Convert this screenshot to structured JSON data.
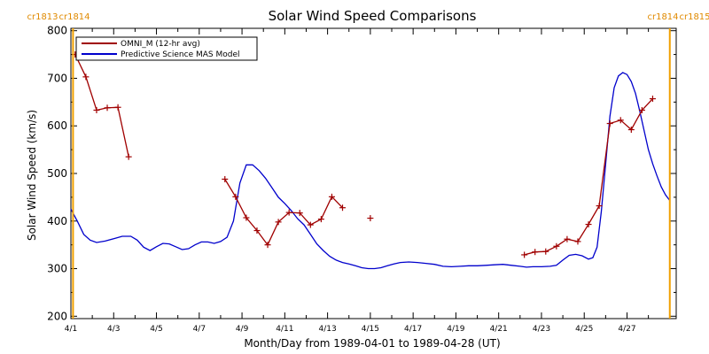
{
  "chart_data": {
    "type": "line",
    "title": "Solar Wind Speed Comparisons",
    "xlabel": "Month/Day from 1989-04-01 to 1989-04-28 (UT)",
    "ylabel": "Solar Wind Speed (km/s)",
    "ylim": [
      195,
      805
    ],
    "xlim_days": [
      0,
      28.3
    ],
    "x_ticks": [
      {
        "day": 0,
        "label": "4/1"
      },
      {
        "day": 2,
        "label": "4/3"
      },
      {
        "day": 4,
        "label": "4/5"
      },
      {
        "day": 6,
        "label": "4/7"
      },
      {
        "day": 8,
        "label": "4/9"
      },
      {
        "day": 10,
        "label": "4/11"
      },
      {
        "day": 12,
        "label": "4/13"
      },
      {
        "day": 14,
        "label": "4/15"
      },
      {
        "day": 16,
        "label": "4/17"
      },
      {
        "day": 18,
        "label": "4/19"
      },
      {
        "day": 20,
        "label": "4/21"
      },
      {
        "day": 22,
        "label": "4/23"
      },
      {
        "day": 24,
        "label": "4/25"
      },
      {
        "day": 26,
        "label": "4/27"
      }
    ],
    "y_ticks": [
      200,
      300,
      400,
      500,
      600,
      700,
      800
    ],
    "carrington_markers": [
      {
        "day": 0.1,
        "left_label": "cr1813",
        "right_label": "cr1814"
      },
      {
        "day": 28.0,
        "left_label": "cr1814",
        "right_label": "cr1815"
      }
    ],
    "legend_position": "top-left",
    "series": [
      {
        "name": "OMNI_M (12-hr avg)",
        "color": "#a00000",
        "marker": "+",
        "segments": [
          [
            [
              0.2,
              750
            ],
            [
              0.7,
              703
            ],
            [
              1.2,
              633
            ],
            [
              1.7,
              638
            ],
            [
              2.2,
              639
            ],
            [
              2.7,
              535
            ]
          ],
          [
            [
              7.2,
              488
            ],
            [
              7.7,
              451
            ],
            [
              8.2,
              407
            ],
            [
              8.7,
              380
            ],
            [
              9.2,
              350
            ],
            [
              9.7,
              398
            ],
            [
              10.2,
              418
            ],
            [
              10.7,
              417
            ],
            [
              11.2,
              392
            ],
            [
              11.7,
              404
            ],
            [
              12.2,
              451
            ],
            [
              12.7,
              428
            ]
          ],
          [
            [
              14.0,
              406
            ]
          ],
          [
            [
              21.2,
              329
            ],
            [
              21.7,
              335
            ],
            [
              22.2,
              336
            ],
            [
              22.7,
              347
            ],
            [
              23.2,
              362
            ],
            [
              23.7,
              357
            ],
            [
              24.2,
              393
            ],
            [
              24.7,
              432
            ],
            [
              25.2,
              605
            ],
            [
              25.7,
              612
            ],
            [
              26.2,
              592
            ],
            [
              26.7,
              633
            ],
            [
              27.2,
              657
            ]
          ]
        ]
      },
      {
        "name": "Predictive Science MAS Model",
        "color": "#0000cc",
        "points": [
          [
            0,
            425
          ],
          [
            0.3,
            400
          ],
          [
            0.6,
            372
          ],
          [
            0.9,
            360
          ],
          [
            1.2,
            355
          ],
          [
            1.6,
            358
          ],
          [
            2.0,
            363
          ],
          [
            2.4,
            368
          ],
          [
            2.8,
            368
          ],
          [
            3.1,
            360
          ],
          [
            3.4,
            345
          ],
          [
            3.7,
            338
          ],
          [
            4.0,
            346
          ],
          [
            4.3,
            353
          ],
          [
            4.6,
            352
          ],
          [
            4.9,
            346
          ],
          [
            5.2,
            340
          ],
          [
            5.5,
            342
          ],
          [
            5.8,
            350
          ],
          [
            6.1,
            356
          ],
          [
            6.4,
            356
          ],
          [
            6.7,
            353
          ],
          [
            7.0,
            357
          ],
          [
            7.3,
            366
          ],
          [
            7.6,
            400
          ],
          [
            7.9,
            480
          ],
          [
            8.2,
            518
          ],
          [
            8.5,
            518
          ],
          [
            8.8,
            506
          ],
          [
            9.1,
            490
          ],
          [
            9.4,
            470
          ],
          [
            9.7,
            450
          ],
          [
            10.0,
            437
          ],
          [
            10.3,
            422
          ],
          [
            10.6,
            405
          ],
          [
            10.9,
            392
          ],
          [
            11.2,
            372
          ],
          [
            11.5,
            352
          ],
          [
            11.8,
            338
          ],
          [
            12.1,
            326
          ],
          [
            12.4,
            318
          ],
          [
            12.7,
            313
          ],
          [
            13.0,
            310
          ],
          [
            13.3,
            306
          ],
          [
            13.6,
            302
          ],
          [
            13.9,
            300
          ],
          [
            14.2,
            300
          ],
          [
            14.5,
            302
          ],
          [
            14.8,
            306
          ],
          [
            15.1,
            310
          ],
          [
            15.4,
            313
          ],
          [
            15.8,
            314
          ],
          [
            16.2,
            313
          ],
          [
            16.6,
            311
          ],
          [
            17.0,
            309
          ],
          [
            17.4,
            305
          ],
          [
            17.8,
            304
          ],
          [
            18.2,
            305
          ],
          [
            18.6,
            306
          ],
          [
            19.0,
            306
          ],
          [
            19.4,
            307
          ],
          [
            19.8,
            308
          ],
          [
            20.2,
            309
          ],
          [
            20.6,
            307
          ],
          [
            21.0,
            305
          ],
          [
            21.3,
            303
          ],
          [
            21.6,
            304
          ],
          [
            22.0,
            304
          ],
          [
            22.4,
            305
          ],
          [
            22.7,
            307
          ],
          [
            23.0,
            318
          ],
          [
            23.3,
            328
          ],
          [
            23.6,
            330
          ],
          [
            23.9,
            327
          ],
          [
            24.2,
            320
          ],
          [
            24.4,
            323
          ],
          [
            24.6,
            345
          ],
          [
            24.8,
            420
          ],
          [
            25.0,
            520
          ],
          [
            25.2,
            620
          ],
          [
            25.4,
            680
          ],
          [
            25.6,
            705
          ],
          [
            25.8,
            712
          ],
          [
            26.0,
            708
          ],
          [
            26.2,
            693
          ],
          [
            26.4,
            668
          ],
          [
            26.6,
            630
          ],
          [
            26.8,
            590
          ],
          [
            27.0,
            550
          ],
          [
            27.2,
            520
          ],
          [
            27.4,
            495
          ],
          [
            27.6,
            472
          ],
          [
            27.8,
            455
          ],
          [
            28.0,
            443
          ]
        ]
      }
    ]
  }
}
